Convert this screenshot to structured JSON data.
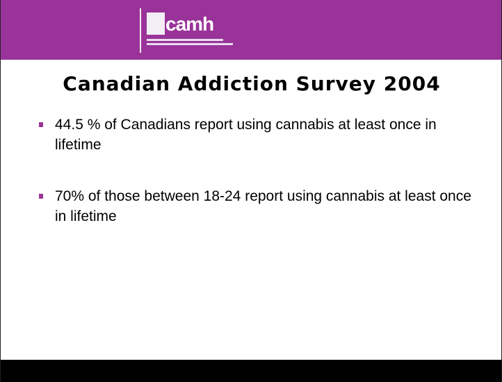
{
  "logo": {
    "icon": "camh-logo",
    "wordmark": "camh"
  },
  "title": "Canadian Addiction Survey 2004",
  "bullets": [
    {
      "text": "44.5 % of Canadians report using cannabis at least once in lifetime"
    },
    {
      "text": "70% of those between 18-24 report using cannabis at least once in lifetime"
    }
  ],
  "colors": {
    "header_band": "#993399",
    "bullet_marker": "#993399",
    "footer_band": "#000000",
    "background": "#ffffff"
  }
}
